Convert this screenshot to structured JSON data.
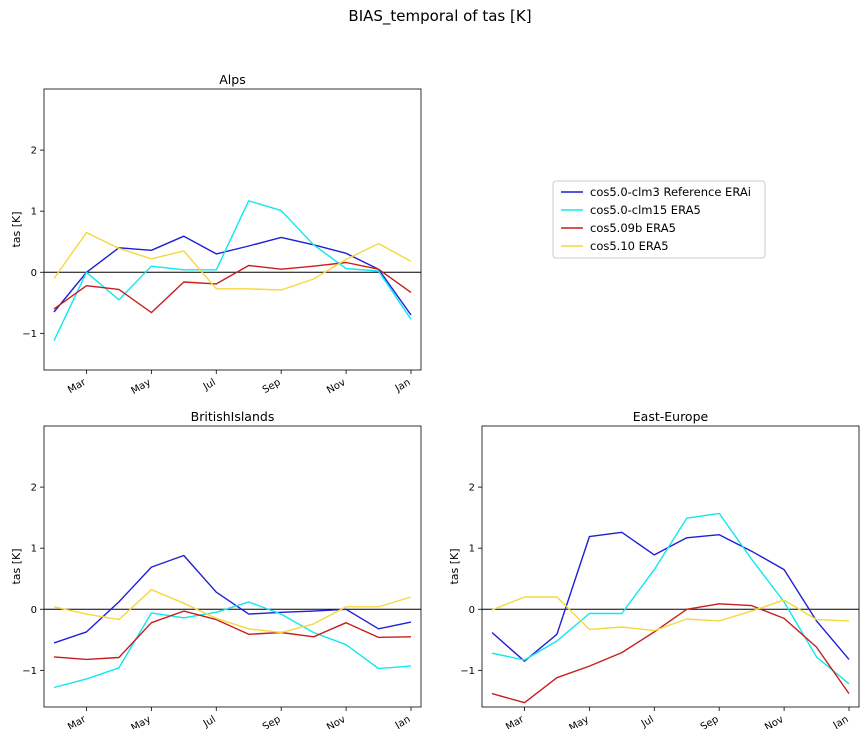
{
  "figure": {
    "title": "BIAS_temporal of tas [K]"
  },
  "legend": {
    "placement": "right of top panel",
    "entries": [
      {
        "label": "cos5.0-clm3 Reference ERAi",
        "color": "#1f1fd6"
      },
      {
        "label": "cos5.0-clm15 ERA5",
        "color": "#10e8f0"
      },
      {
        "label": "cos5.09b ERA5",
        "color": "#c81e1e"
      },
      {
        "label": "cos5.10 ERA5",
        "color": "#f5d83c"
      }
    ]
  },
  "chart_data": [
    {
      "type": "line",
      "title": "Alps",
      "ylabel": "tas [K]",
      "xlabel": "",
      "ylim": [
        -1.6,
        3.0
      ],
      "yticks": [
        "2",
        "1",
        "0",
        "−1"
      ],
      "ytick_values": [
        2,
        1,
        0,
        -1
      ],
      "x": [
        "Feb",
        "Mar",
        "Apr",
        "May",
        "Jun",
        "Jul",
        "Aug",
        "Sep",
        "Oct",
        "Nov",
        "Dec",
        "Jan"
      ],
      "xticks": [
        "Mar",
        "May",
        "Jul",
        "Sep",
        "Nov",
        "Jan"
      ],
      "zero_line": true,
      "series": [
        {
          "name": "cos5.0-clm3 Reference ERAi",
          "color": "#1f1fd6",
          "values": [
            -0.65,
            0.0,
            0.4,
            0.36,
            0.59,
            0.3,
            0.43,
            0.57,
            0.45,
            0.31,
            0.05,
            -0.7
          ]
        },
        {
          "name": "cos5.0-clm15 ERA5",
          "color": "#10e8f0",
          "values": [
            -1.12,
            0.0,
            -0.45,
            0.1,
            0.04,
            0.04,
            1.17,
            1.01,
            0.45,
            0.06,
            0.02,
            -0.77
          ]
        },
        {
          "name": "cos5.09b ERA5",
          "color": "#c81e1e",
          "values": [
            -0.6,
            -0.22,
            -0.28,
            -0.66,
            -0.16,
            -0.19,
            0.11,
            0.05,
            0.1,
            0.16,
            0.05,
            -0.33
          ]
        },
        {
          "name": "cos5.10 ERA5",
          "color": "#f5d83c",
          "values": [
            -0.1,
            0.65,
            0.39,
            0.22,
            0.35,
            -0.27,
            -0.27,
            -0.29,
            -0.11,
            0.21,
            0.47,
            0.18
          ]
        }
      ]
    },
    {
      "type": "line",
      "title": "BritishIslands",
      "ylabel": "tas [K]",
      "xlabel": "",
      "ylim": [
        -1.6,
        3.0
      ],
      "yticks": [
        "2",
        "1",
        "0",
        "−1"
      ],
      "ytick_values": [
        2,
        1,
        0,
        -1
      ],
      "x": [
        "Feb",
        "Mar",
        "Apr",
        "May",
        "Jun",
        "Jul",
        "Aug",
        "Sep",
        "Oct",
        "Nov",
        "Dec",
        "Jan"
      ],
      "xticks": [
        "Mar",
        "May",
        "Jul",
        "Sep",
        "Nov",
        "Jan"
      ],
      "zero_line": true,
      "series": [
        {
          "name": "cos5.0-clm3 Reference ERAi",
          "color": "#1f1fd6",
          "values": [
            -0.55,
            -0.37,
            0.12,
            0.69,
            0.88,
            0.28,
            -0.08,
            -0.05,
            -0.03,
            0.0,
            -0.32,
            -0.21
          ]
        },
        {
          "name": "cos5.0-clm15 ERA5",
          "color": "#10e8f0",
          "values": [
            -1.28,
            -1.14,
            -0.96,
            -0.06,
            -0.14,
            -0.05,
            0.12,
            -0.08,
            -0.38,
            -0.58,
            -0.97,
            -0.93
          ]
        },
        {
          "name": "cos5.09b ERA5",
          "color": "#c81e1e",
          "values": [
            -0.78,
            -0.82,
            -0.79,
            -0.22,
            -0.03,
            -0.17,
            -0.41,
            -0.38,
            -0.45,
            -0.22,
            -0.46,
            -0.45
          ]
        },
        {
          "name": "cos5.10 ERA5",
          "color": "#f5d83c",
          "values": [
            0.04,
            -0.08,
            -0.17,
            0.32,
            0.1,
            -0.15,
            -0.32,
            -0.38,
            -0.24,
            0.04,
            0.04,
            0.2
          ]
        }
      ]
    },
    {
      "type": "line",
      "title": "East-Europe",
      "ylabel": "tas [K]",
      "xlabel": "",
      "ylim": [
        -1.6,
        3.0
      ],
      "yticks": [
        "2",
        "1",
        "0",
        "−1"
      ],
      "ytick_values": [
        2,
        1,
        0,
        -1
      ],
      "x": [
        "Feb",
        "Mar",
        "Apr",
        "May",
        "Jun",
        "Jul",
        "Aug",
        "Sep",
        "Oct",
        "Nov",
        "Dec",
        "Jan"
      ],
      "xticks": [
        "Mar",
        "May",
        "Jul",
        "Sep",
        "Nov",
        "Jan"
      ],
      "zero_line": true,
      "series": [
        {
          "name": "cos5.0-clm3 Reference ERAi",
          "color": "#1f1fd6",
          "values": [
            -0.38,
            -0.85,
            -0.41,
            1.19,
            1.26,
            0.89,
            1.17,
            1.22,
            0.95,
            0.65,
            -0.19,
            -0.82
          ]
        },
        {
          "name": "cos5.0-clm15 ERA5",
          "color": "#10e8f0",
          "values": [
            -0.72,
            -0.83,
            -0.52,
            -0.07,
            -0.07,
            0.65,
            1.49,
            1.57,
            0.82,
            0.12,
            -0.78,
            -1.22
          ]
        },
        {
          "name": "cos5.09b ERA5",
          "color": "#c81e1e",
          "values": [
            -1.38,
            -1.53,
            -1.12,
            -0.93,
            -0.71,
            -0.37,
            0.0,
            0.09,
            0.06,
            -0.15,
            -0.62,
            -1.38
          ]
        },
        {
          "name": "cos5.10 ERA5",
          "color": "#f5d83c",
          "values": [
            -0.01,
            0.2,
            0.2,
            -0.33,
            -0.29,
            -0.35,
            -0.16,
            -0.19,
            -0.03,
            0.15,
            -0.17,
            -0.19
          ]
        }
      ]
    }
  ]
}
